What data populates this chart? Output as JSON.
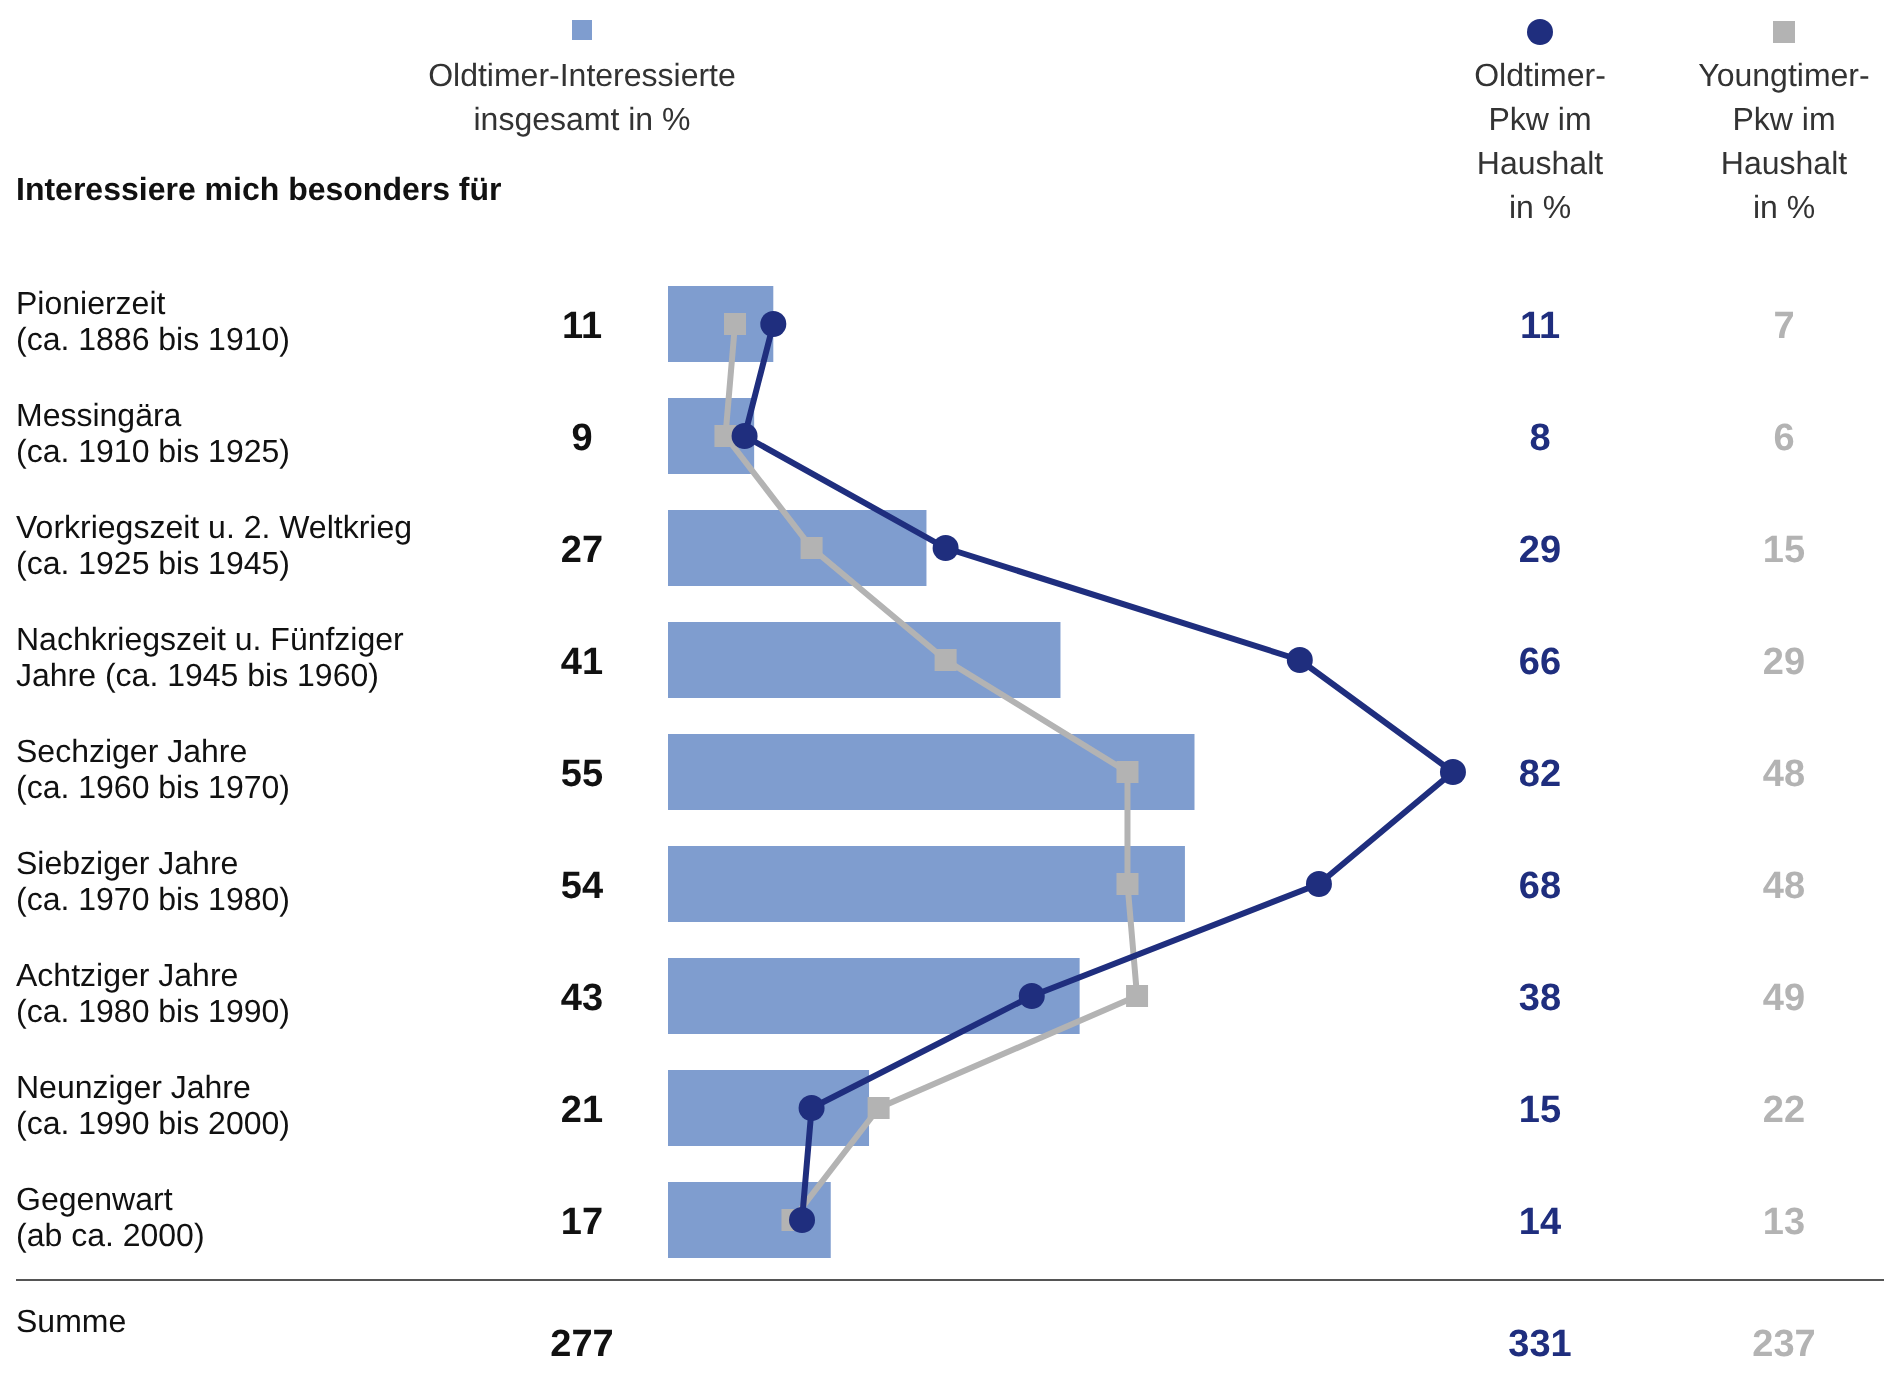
{
  "chart_data": {
    "type": "bar",
    "orientation": "horizontal",
    "ylabel": "Interessiere mich besonders für",
    "categories": [
      "Pionierzeit\n(ca. 1886 bis 1910)",
      "Messingära\n(ca. 1910 bis 1925)",
      "Vorkriegszeit u. 2. Weltkrieg\n(ca. 1925 bis 1945)",
      "Nachkriegszeit u. Fünfziger\nJahre (ca. 1945 bis 1960)",
      "Sechziger Jahre\n(ca. 1960 bis 1970)",
      "Siebziger Jahre\n(ca. 1970 bis 1980)",
      "Achtziger Jahre\n(ca. 1980 bis 1990)",
      "Neunziger Jahre\n(ca. 1990 bis 2000)",
      "Gegenwart\n(ab ca. 2000)"
    ],
    "series": [
      {
        "name": "Oldtimer-Interessierte insgesamt in %",
        "color": "#7f9dcf",
        "values": [
          11,
          9,
          27,
          41,
          55,
          54,
          43,
          21,
          17
        ]
      },
      {
        "name": "Oldtimer-Pkw im Haushalt in %",
        "type": "line",
        "marker": "circle",
        "color": "#1f2e7e",
        "values": [
          11,
          8,
          29,
          66,
          82,
          68,
          38,
          15,
          14
        ]
      },
      {
        "name": "Youngtimer-Pkw im Haushalt in %",
        "type": "line",
        "marker": "square",
        "color": "#b3b3b3",
        "values": [
          7,
          6,
          15,
          29,
          48,
          48,
          49,
          22,
          13
        ]
      }
    ],
    "data_labels": true,
    "legend": "top",
    "annotations": [
      "Summe",
      "277",
      "331",
      "237"
    ]
  }
}
